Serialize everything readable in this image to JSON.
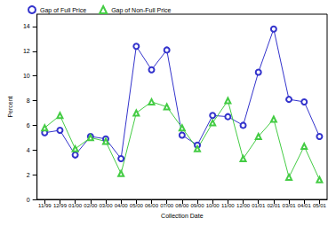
{
  "chart_data": {
    "type": "line",
    "x_label": "Collection Date",
    "y_label": "Percent",
    "categories": [
      "11/99",
      "12/99",
      "01/00",
      "02/00",
      "03/00",
      "04/00",
      "05/00",
      "06/00",
      "07/00",
      "08/00",
      "09/00",
      "10/00",
      "11/00",
      "12/00",
      "01/01",
      "02/01",
      "03/01",
      "04/01",
      "05/01"
    ],
    "series": [
      {
        "name": "Gap of Full Price",
        "color": "#3333cc",
        "marker": "circle",
        "values": [
          5.4,
          5.6,
          3.6,
          5.1,
          4.9,
          3.3,
          12.4,
          10.5,
          12.1,
          5.2,
          4.4,
          6.8,
          6.7,
          6.0,
          10.3,
          13.8,
          8.1,
          7.9,
          5.1
        ]
      },
      {
        "name": "Gap of Non-Full Price",
        "color": "#44cc44",
        "marker": "triangle",
        "values": [
          5.8,
          6.8,
          4.1,
          5.0,
          4.7,
          2.1,
          7.0,
          7.9,
          7.5,
          5.8,
          4.1,
          6.2,
          8.0,
          3.3,
          5.1,
          6.5,
          1.8,
          4.3,
          1.6
        ]
      }
    ],
    "ylim": [
      0,
      15
    ],
    "yticks": [
      0,
      2,
      4,
      6,
      8,
      10,
      12,
      14
    ],
    "grid": false,
    "legend": "top left"
  }
}
